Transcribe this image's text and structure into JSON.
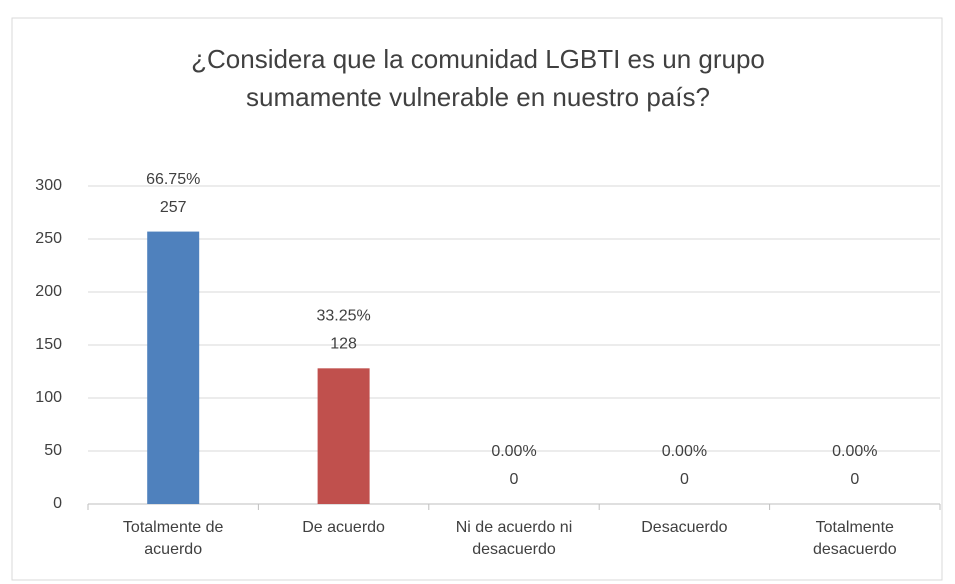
{
  "chart_data": {
    "type": "bar",
    "title": "¿Considera que la comunidad LGBTI es un grupo sumamente vulnerable en nuestro país?",
    "categories": [
      "Totalmente de acuerdo",
      "De acuerdo",
      "Ni de acuerdo ni desacuerdo",
      "Desacuerdo",
      "Totalmente desacuerdo"
    ],
    "values": [
      257,
      128,
      0,
      0,
      0
    ],
    "percent_labels": [
      "66.75%",
      "33.25%",
      "0.00%",
      "0.00%",
      "0.00%"
    ],
    "colors": [
      "#4f81bd",
      "#c0504d",
      "#9bbb59",
      "#8064a2",
      "#4bacc6"
    ],
    "ylim": [
      0,
      300
    ],
    "yticks": [
      0,
      50,
      100,
      150,
      200,
      250,
      300
    ],
    "grid": true
  }
}
